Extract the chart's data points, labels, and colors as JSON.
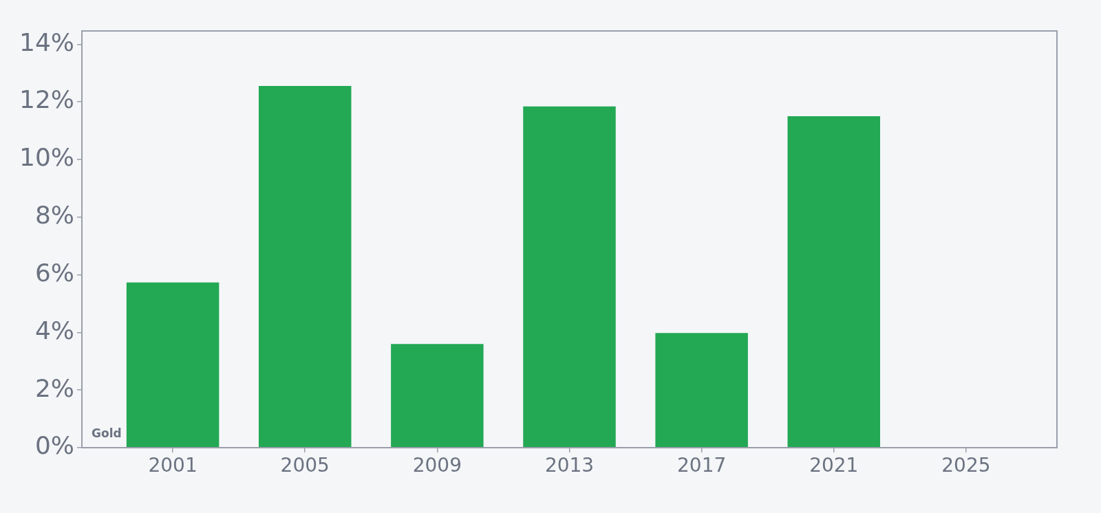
{
  "chart_data": {
    "type": "bar",
    "x": [
      2001,
      2005,
      2009,
      2013,
      2017,
      2021
    ],
    "values": [
      5.73,
      12.55,
      3.6,
      11.84,
      3.98,
      11.5
    ],
    "color": "#23a854",
    "xlim": [
      1998.25,
      2027.75
    ],
    "xticks": [
      2001,
      2005,
      2009,
      2013,
      2017,
      2021,
      2025
    ],
    "ylim": [
      0,
      14.46
    ],
    "yticks": [
      {
        "value": 0,
        "label": "0%"
      },
      {
        "value": 2,
        "label": "2%"
      },
      {
        "value": 4,
        "label": "4%"
      },
      {
        "value": 6,
        "label": "6%"
      },
      {
        "value": 8,
        "label": "8%"
      },
      {
        "value": 10,
        "label": "10%"
      },
      {
        "value": 12,
        "label": "12%"
      },
      {
        "value": 14,
        "label": "14%"
      }
    ],
    "grid": false,
    "legend": false,
    "annotations": [
      "Gold"
    ]
  }
}
